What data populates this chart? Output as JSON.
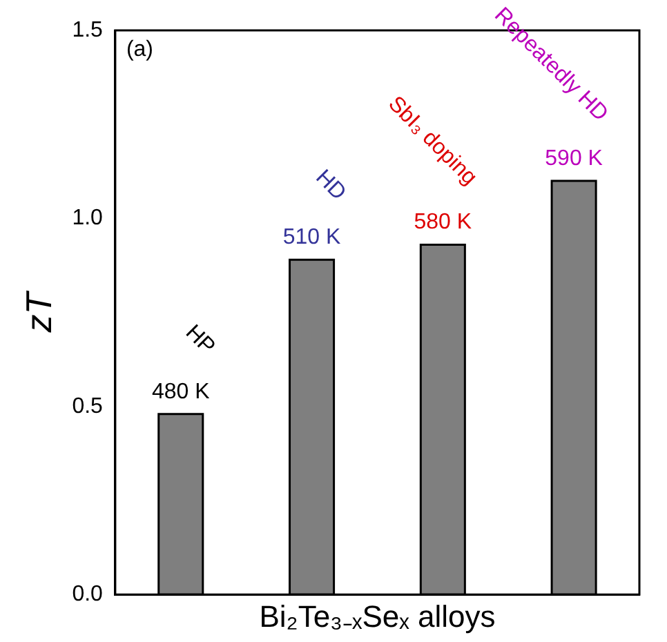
{
  "chart_data": {
    "type": "bar",
    "xlabel": "Bi₂Te₃₋ₓSeₓ alloys",
    "ylabel": "zT",
    "categories": [
      null,
      null,
      null,
      null
    ],
    "values": [
      0.48,
      0.89,
      0.93,
      1.1
    ],
    "color": "#7f7f7f",
    "ylim": [
      0,
      1.5
    ],
    "yticks": [
      {
        "value": 0,
        "label": "0.0"
      },
      {
        "value": 0.5,
        "label": "0.5"
      },
      {
        "value": 1,
        "label": "1.0"
      },
      {
        "value": 1.5,
        "label": "1.5"
      }
    ],
    "annotations": [
      "(a)",
      {
        "text": "HP",
        "y": 0.48
      },
      {
        "text": "480 K",
        "y": 0.48
      },
      {
        "text": "HD",
        "y": 0.89
      },
      {
        "text": "510 K",
        "y": 0.89
      },
      {
        "text": "SbI₃ doping",
        "y": 0.93
      },
      {
        "text": "580 K",
        "y": 0.93
      },
      {
        "text": "Repeatedly HD",
        "y": 1.1
      },
      {
        "text": "590 K",
        "y": 1.1
      }
    ],
    "grid": false,
    "legend": false
  }
}
